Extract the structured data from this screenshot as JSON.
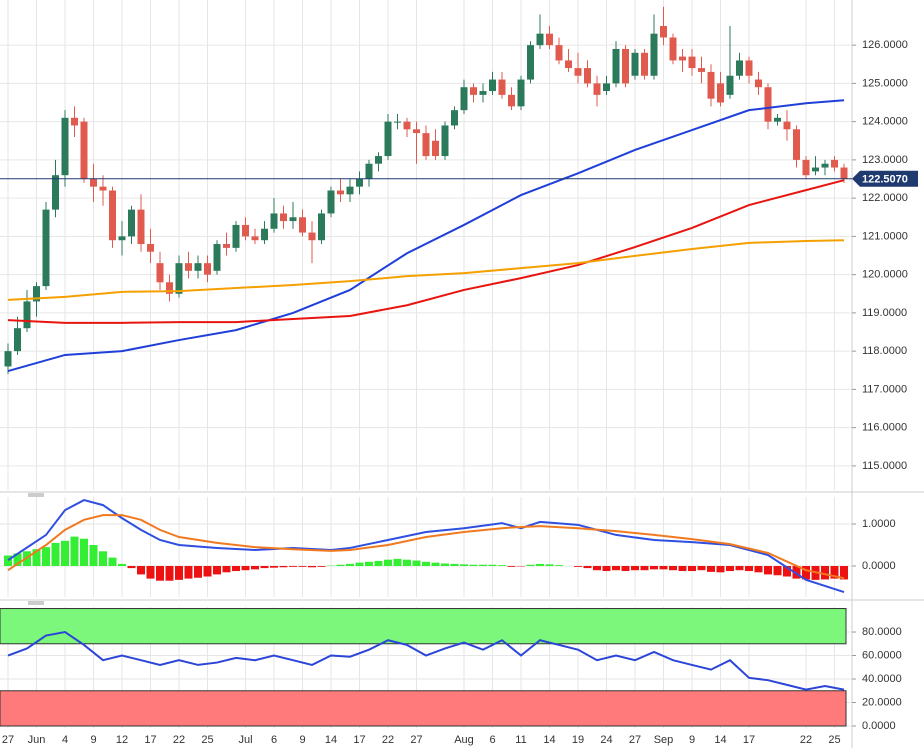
{
  "chart_data": [
    {
      "type": "candlestick",
      "categories": [
        "27",
        null,
        null,
        "Jun",
        null,
        null,
        "4",
        null,
        null,
        "9",
        null,
        null,
        "12",
        null,
        null,
        "17",
        null,
        null,
        "22",
        null,
        null,
        "25",
        null,
        null,
        null,
        "Jul",
        null,
        null,
        "6",
        null,
        null,
        "9",
        null,
        null,
        "14",
        null,
        null,
        "17",
        null,
        null,
        "22",
        null,
        null,
        "27",
        null,
        null,
        null,
        null,
        "Aug",
        null,
        null,
        "6",
        null,
        null,
        "11",
        null,
        null,
        "14",
        null,
        null,
        "19",
        null,
        null,
        "24",
        null,
        null,
        "27",
        null,
        null,
        "Sep",
        null,
        null,
        "9",
        null,
        null,
        "14",
        null,
        null,
        "17",
        null,
        null,
        null,
        null,
        null,
        "22",
        null,
        null,
        "25",
        null
      ],
      "ohlc": [
        [
          117.6,
          118.2,
          117.4,
          118.0
        ],
        [
          118.0,
          118.9,
          117.9,
          118.6
        ],
        [
          118.6,
          119.6,
          118.5,
          119.3
        ],
        [
          119.3,
          119.8,
          118.9,
          119.7
        ],
        [
          119.7,
          121.9,
          119.6,
          121.7
        ],
        [
          121.7,
          123.0,
          121.5,
          122.6
        ],
        [
          122.6,
          124.3,
          122.3,
          124.1
        ],
        [
          124.1,
          124.4,
          123.6,
          123.9
        ],
        [
          124.0,
          124.1,
          122.4,
          122.5
        ],
        [
          122.5,
          122.9,
          121.9,
          122.3
        ],
        [
          122.3,
          122.6,
          121.8,
          122.2
        ],
        [
          122.2,
          122.3,
          120.7,
          120.9
        ],
        [
          120.9,
          121.4,
          120.5,
          121.0
        ],
        [
          121.0,
          121.8,
          120.8,
          121.7
        ],
        [
          121.7,
          122.1,
          120.6,
          120.8
        ],
        [
          120.8,
          121.2,
          120.3,
          120.6
        ],
        [
          120.3,
          120.6,
          119.6,
          119.8
        ],
        [
          119.8,
          120.0,
          119.3,
          119.5
        ],
        [
          119.5,
          120.5,
          119.4,
          120.3
        ],
        [
          120.3,
          120.6,
          119.9,
          120.1
        ],
        [
          120.1,
          120.5,
          119.9,
          120.3
        ],
        [
          120.3,
          120.5,
          119.8,
          120.0
        ],
        [
          120.1,
          120.9,
          120.0,
          120.8
        ],
        [
          120.8,
          121.1,
          120.5,
          120.7
        ],
        [
          120.7,
          121.4,
          120.6,
          121.3
        ],
        [
          121.3,
          121.5,
          120.9,
          121.0
        ],
        [
          121.0,
          121.2,
          120.8,
          120.9
        ],
        [
          120.9,
          121.4,
          120.8,
          121.2
        ],
        [
          121.2,
          122.0,
          121.1,
          121.6
        ],
        [
          121.6,
          121.8,
          121.2,
          121.4
        ],
        [
          121.4,
          121.9,
          121.2,
          121.5
        ],
        [
          121.5,
          121.7,
          121.0,
          121.1
        ],
        [
          121.1,
          121.4,
          120.3,
          120.9
        ],
        [
          120.9,
          121.7,
          120.8,
          121.6
        ],
        [
          121.6,
          122.3,
          121.5,
          122.2
        ],
        [
          122.2,
          122.5,
          121.9,
          122.1
        ],
        [
          122.1,
          122.5,
          121.9,
          122.3
        ],
        [
          122.3,
          122.7,
          122.1,
          122.5
        ],
        [
          122.5,
          123.0,
          122.3,
          122.9
        ],
        [
          122.9,
          123.2,
          122.7,
          123.1
        ],
        [
          123.1,
          124.2,
          123.0,
          124.0
        ],
        [
          124.0,
          124.2,
          123.8,
          124.0
        ],
        [
          124.0,
          124.1,
          123.6,
          123.8
        ],
        [
          123.8,
          124.0,
          122.9,
          123.7
        ],
        [
          123.7,
          123.9,
          123.0,
          123.1
        ],
        [
          123.5,
          123.8,
          123.0,
          123.1
        ],
        [
          123.1,
          124.0,
          123.0,
          123.9
        ],
        [
          123.9,
          124.4,
          123.8,
          124.3
        ],
        [
          124.3,
          125.1,
          124.2,
          124.9
        ],
        [
          124.9,
          125.0,
          124.5,
          124.7
        ],
        [
          124.7,
          125.0,
          124.5,
          124.8
        ],
        [
          124.8,
          125.3,
          124.7,
          125.1
        ],
        [
          125.1,
          125.3,
          124.6,
          124.7
        ],
        [
          124.7,
          124.9,
          124.3,
          124.4
        ],
        [
          124.4,
          125.2,
          124.3,
          125.1
        ],
        [
          125.1,
          126.1,
          125.0,
          126.0
        ],
        [
          126.0,
          126.8,
          125.9,
          126.3
        ],
        [
          126.3,
          126.5,
          125.9,
          126.0
        ],
        [
          126.0,
          126.2,
          125.5,
          125.6
        ],
        [
          125.6,
          125.9,
          125.3,
          125.4
        ],
        [
          125.4,
          125.8,
          125.0,
          125.2
        ],
        [
          125.4,
          125.6,
          124.9,
          125.0
        ],
        [
          125.0,
          125.2,
          124.4,
          124.7
        ],
        [
          124.8,
          125.2,
          124.7,
          125.0
        ],
        [
          125.0,
          126.1,
          124.9,
          125.9
        ],
        [
          125.9,
          126.0,
          124.9,
          125.0
        ],
        [
          125.2,
          125.9,
          125.1,
          125.8
        ],
        [
          125.8,
          125.9,
          125.1,
          125.2
        ],
        [
          125.2,
          126.8,
          125.1,
          126.3
        ],
        [
          126.5,
          127.0,
          126.0,
          126.2
        ],
        [
          126.2,
          126.3,
          125.5,
          125.6
        ],
        [
          125.7,
          125.9,
          125.3,
          125.6
        ],
        [
          125.7,
          125.9,
          125.2,
          125.4
        ],
        [
          125.4,
          125.7,
          125.0,
          125.3
        ],
        [
          125.3,
          125.5,
          124.4,
          124.6
        ],
        [
          125.0,
          125.3,
          124.4,
          124.5
        ],
        [
          124.7,
          126.5,
          124.6,
          125.2
        ],
        [
          125.2,
          125.8,
          125.1,
          125.6
        ],
        [
          125.6,
          125.7,
          125.0,
          125.2
        ],
        [
          125.1,
          125.3,
          124.7,
          124.9
        ],
        [
          124.9,
          125.0,
          123.8,
          124.0
        ],
        [
          124.0,
          124.2,
          123.9,
          124.1
        ],
        [
          124.0,
          124.3,
          123.5,
          123.8
        ],
        [
          123.8,
          123.9,
          122.8,
          123.0
        ],
        [
          123.0,
          123.1,
          122.5,
          122.6
        ],
        [
          122.7,
          123.1,
          122.6,
          122.8
        ],
        [
          122.8,
          123.0,
          122.6,
          122.9
        ],
        [
          123.0,
          123.1,
          122.7,
          122.8
        ],
        [
          122.8,
          122.9,
          122.4,
          122.5
        ]
      ],
      "up_color": "#2b7a5b",
      "down_color": "#e05a4e",
      "series": [
        {
          "color": "#1f3fd9",
          "x": [
            0,
            6,
            12,
            18,
            24,
            30,
            36,
            42,
            48,
            54,
            60,
            66,
            72,
            78,
            84,
            88
          ],
          "values": [
            117.48,
            117.9,
            118.0,
            118.29,
            118.55,
            119.0,
            119.6,
            120.56,
            121.3,
            122.08,
            122.65,
            123.26,
            123.78,
            124.3,
            124.48,
            124.56
          ]
        },
        {
          "color": "#e8150f",
          "x": [
            0,
            6,
            12,
            18,
            24,
            30,
            36,
            42,
            48,
            54,
            60,
            66,
            72,
            78,
            84,
            88
          ],
          "values": [
            118.81,
            118.74,
            118.74,
            118.76,
            118.76,
            118.84,
            118.92,
            119.2,
            119.6,
            119.91,
            120.25,
            120.72,
            121.22,
            121.82,
            122.21,
            122.47
          ]
        },
        {
          "color": "#f5a000",
          "x": [
            0,
            6,
            12,
            18,
            24,
            30,
            36,
            42,
            48,
            54,
            60,
            66,
            72,
            78,
            84,
            88
          ],
          "values": [
            119.34,
            119.42,
            119.55,
            119.57,
            119.65,
            119.73,
            119.83,
            119.96,
            120.04,
            120.17,
            120.3,
            120.49,
            120.67,
            120.83,
            120.88,
            120.9
          ]
        }
      ],
      "last_price": {
        "value": 122.507,
        "label": "122.5070"
      },
      "ylim": [
        114.37,
        127.18
      ],
      "yticks": [
        {
          "value": 115,
          "label": "115.0000"
        },
        {
          "value": 116,
          "label": "116.0000"
        },
        {
          "value": 117,
          "label": "117.0000"
        },
        {
          "value": 118,
          "label": "118.0000"
        },
        {
          "value": 119,
          "label": "119.0000"
        },
        {
          "value": 120,
          "label": "120.0000"
        },
        {
          "value": 121,
          "label": "121.0000"
        },
        {
          "value": 122,
          "label": "122.0000"
        },
        {
          "value": 123,
          "label": "123.0000"
        },
        {
          "value": 124,
          "label": "124.0000"
        },
        {
          "value": 125,
          "label": "125.0000"
        },
        {
          "value": 126,
          "label": "126.0000"
        }
      ],
      "grid": true
    },
    {
      "type": "macd",
      "histogram": [
        0.25,
        0.3,
        0.35,
        0.4,
        0.45,
        0.55,
        0.6,
        0.7,
        0.65,
        0.5,
        0.35,
        0.2,
        0.05,
        -0.05,
        -0.2,
        -0.3,
        -0.35,
        -0.35,
        -0.33,
        -0.3,
        -0.28,
        -0.25,
        -0.2,
        -0.15,
        -0.12,
        -0.1,
        -0.08,
        -0.05,
        -0.04,
        -0.03,
        -0.02,
        -0.02,
        -0.03,
        -0.02,
        0.01,
        0.03,
        0.05,
        0.08,
        0.1,
        0.12,
        0.15,
        0.17,
        0.15,
        0.13,
        0.1,
        0.08,
        0.06,
        0.05,
        0.04,
        0.03,
        0.03,
        0.03,
        0.02,
        -0.02,
        -0.01,
        0.03,
        0.05,
        0.04,
        0.02,
        0,
        -0.02,
        -0.05,
        -0.1,
        -0.12,
        -0.1,
        -0.12,
        -0.1,
        -0.1,
        -0.08,
        -0.08,
        -0.1,
        -0.12,
        -0.12,
        -0.1,
        -0.14,
        -0.15,
        -0.12,
        -0.1,
        -0.12,
        -0.15,
        -0.2,
        -0.22,
        -0.25,
        -0.3,
        -0.32,
        -0.33,
        -0.32,
        -0.3,
        -0.32
      ],
      "up_color": "#33ee33",
      "down_color": "#ee1111",
      "series": [
        {
          "color": "#2f4fe0",
          "x": [
            0,
            4,
            6,
            8,
            10,
            12,
            14,
            16,
            18,
            22,
            26,
            30,
            34,
            36,
            40,
            44,
            48,
            52,
            54,
            56,
            60,
            64,
            68,
            72,
            76,
            80,
            84,
            88
          ],
          "values": [
            0.14,
            0.74,
            1.33,
            1.57,
            1.45,
            1.14,
            0.86,
            0.62,
            0.5,
            0.43,
            0.38,
            0.43,
            0.38,
            0.43,
            0.62,
            0.81,
            0.9,
            1.02,
            0.9,
            1.05,
            0.98,
            0.74,
            0.62,
            0.57,
            0.5,
            0.26,
            -0.33,
            -0.62
          ]
        },
        {
          "color": "#f07a20",
          "x": [
            0,
            4,
            6,
            8,
            10,
            12,
            14,
            16,
            18,
            22,
            26,
            30,
            34,
            36,
            40,
            44,
            48,
            52,
            54,
            56,
            60,
            64,
            68,
            72,
            76,
            80,
            84,
            88
          ],
          "values": [
            -0.1,
            0.5,
            0.86,
            1.1,
            1.21,
            1.21,
            1.1,
            0.86,
            0.69,
            0.55,
            0.45,
            0.4,
            0.36,
            0.38,
            0.5,
            0.69,
            0.81,
            0.9,
            0.93,
            0.95,
            0.9,
            0.83,
            0.74,
            0.64,
            0.52,
            0.31,
            -0.1,
            -0.29
          ]
        }
      ],
      "ylim": [
        -0.738,
        1.643
      ],
      "yticks": [
        {
          "value": 1,
          "label": "1.0000"
        },
        {
          "value": 0,
          "label": "0.0000"
        }
      ]
    },
    {
      "type": "line",
      "bands": [
        {
          "range": [
            70,
            100
          ],
          "color": "#7cf77c"
        },
        {
          "range": [
            0,
            30
          ],
          "color": "#ff7b7b"
        }
      ],
      "series": [
        {
          "color": "#2b45d8",
          "x": [
            0,
            2,
            4,
            6,
            8,
            10,
            12,
            14,
            16,
            18,
            20,
            22,
            24,
            26,
            28,
            30,
            32,
            34,
            36,
            38,
            40,
            42,
            44,
            46,
            48,
            50,
            52,
            54,
            56,
            58,
            60,
            62,
            64,
            66,
            68,
            70,
            72,
            74,
            76,
            78,
            80,
            82,
            84,
            86,
            88
          ],
          "values": [
            60,
            66,
            77,
            80,
            69,
            56,
            60,
            56,
            52,
            56,
            52,
            54,
            58,
            56,
            60,
            56,
            52,
            60,
            59,
            65,
            73,
            69,
            60,
            66,
            71,
            65,
            73,
            60,
            73,
            69,
            65,
            56,
            60,
            56,
            63,
            56,
            52,
            48,
            56,
            41,
            39,
            35,
            31,
            34,
            31
          ]
        }
      ],
      "ylim": [
        -1.7,
        101.3
      ],
      "yticks": [
        {
          "value": 0,
          "label": "0.0000"
        },
        {
          "value": 20,
          "label": "20.0000"
        },
        {
          "value": 40,
          "label": "40.0000"
        },
        {
          "value": 60,
          "label": "60.0000"
        },
        {
          "value": 80,
          "label": "80.0000"
        }
      ]
    }
  ]
}
